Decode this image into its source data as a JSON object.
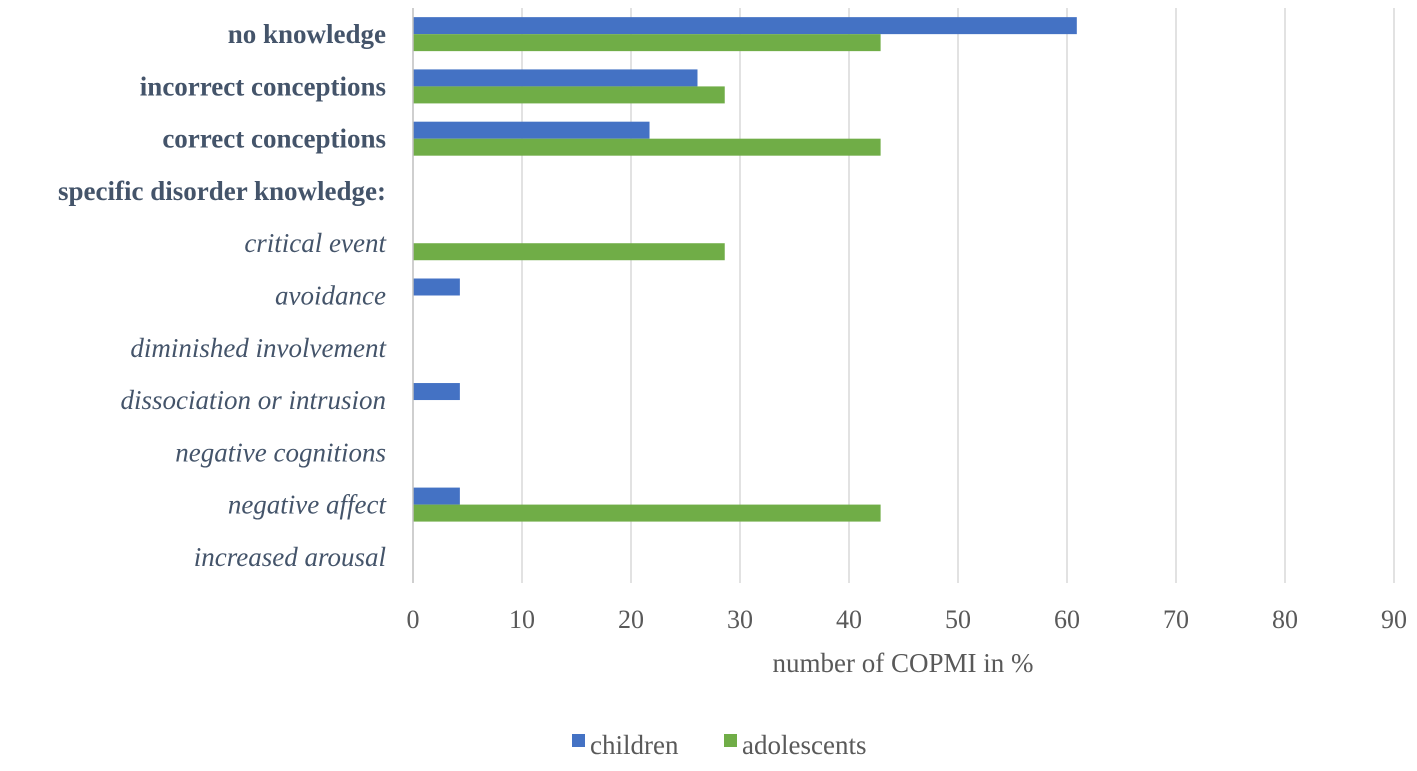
{
  "chart_data": {
    "type": "bar",
    "orientation": "horizontal",
    "title": "",
    "xlabel": "number of COPMI in %",
    "ylabel": "",
    "xlim": [
      0,
      90
    ],
    "x_ticks": [
      0,
      10,
      20,
      30,
      40,
      50,
      60,
      70,
      80,
      90
    ],
    "grid": true,
    "legend_position": "bottom",
    "categories": [
      {
        "label": "no knowledge",
        "style": "bold"
      },
      {
        "label": "incorrect conceptions",
        "style": "bold"
      },
      {
        "label": "correct conceptions",
        "style": "bold"
      },
      {
        "label": "specific disorder knowledge:",
        "style": "bold"
      },
      {
        "label": "critical event",
        "style": "italic"
      },
      {
        "label": "avoidance",
        "style": "italic"
      },
      {
        "label": "diminished involvement",
        "style": "italic"
      },
      {
        "label": "dissociation or intrusion",
        "style": "italic"
      },
      {
        "label": "negative cognitions",
        "style": "italic"
      },
      {
        "label": "negative affect",
        "style": "italic"
      },
      {
        "label": "increased arousal",
        "style": "italic"
      }
    ],
    "series": [
      {
        "name": "children",
        "color": "#4472c4",
        "values": [
          60.9,
          26.1,
          21.7,
          null,
          0,
          4.3,
          0,
          4.3,
          0,
          4.3,
          0
        ]
      },
      {
        "name": "adolescents",
        "color": "#70ad47",
        "values": [
          42.9,
          28.6,
          42.9,
          null,
          28.6,
          0,
          0,
          0,
          0,
          42.9,
          0
        ]
      }
    ]
  }
}
